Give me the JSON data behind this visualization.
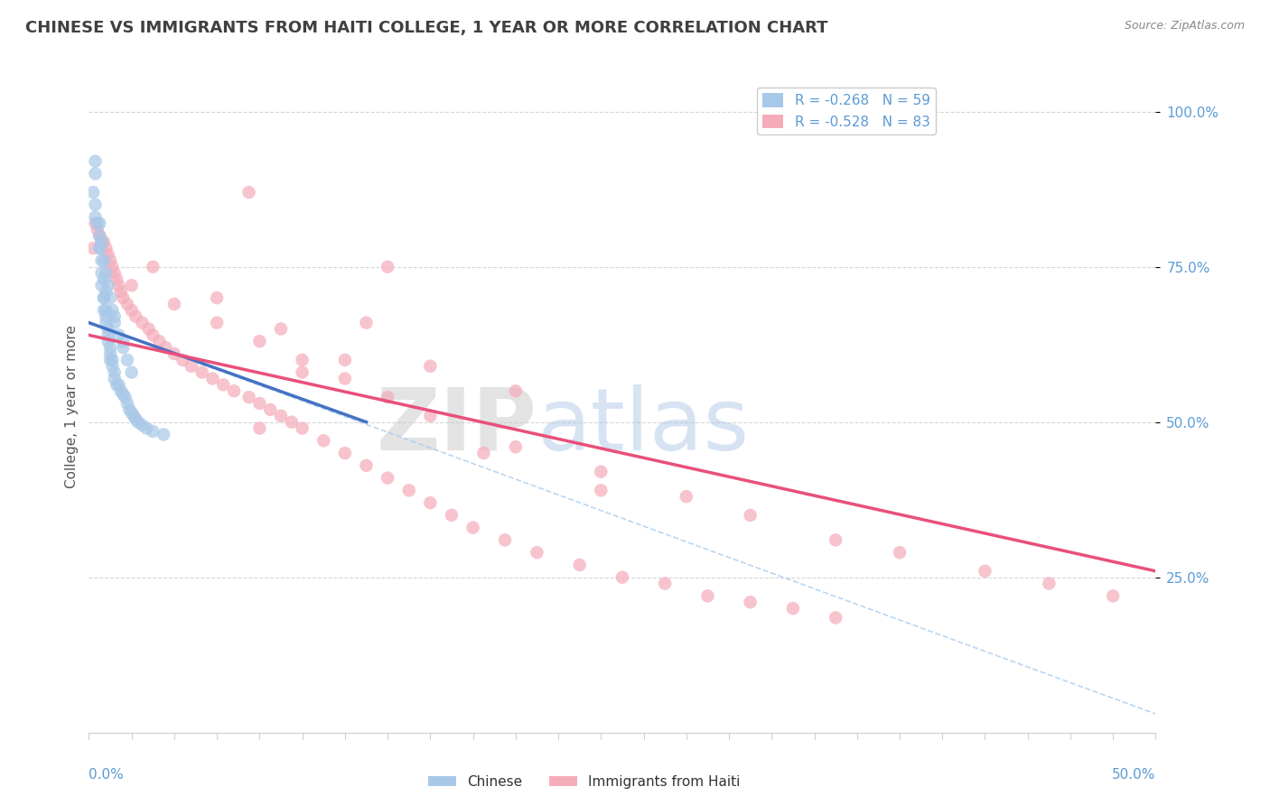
{
  "title": "CHINESE VS IMMIGRANTS FROM HAITI COLLEGE, 1 YEAR OR MORE CORRELATION CHART",
  "source": "Source: ZipAtlas.com",
  "ylabel": "College, 1 year or more",
  "legend_labels": [
    "Chinese",
    "Immigrants from Haiti"
  ],
  "r_chinese": -0.268,
  "n_chinese": 59,
  "r_haiti": -0.528,
  "n_haiti": 83,
  "color_chinese": "#A8C8E8",
  "color_haiti": "#F4ACBA",
  "color_chinese_line": "#4472C4",
  "color_haiti_line": "#E8507A",
  "color_dashed": "#AACCEE",
  "watermark_zip": "ZIP",
  "watermark_atlas": "atlas",
  "xlim": [
    0.0,
    0.5
  ],
  "ylim": [
    0.0,
    1.05
  ],
  "ytick_vals": [
    0.25,
    0.5,
    0.75,
    1.0
  ],
  "ytick_labels": [
    "25.0%",
    "50.0%",
    "75.0%",
    "100.0%"
  ],
  "background_color": "#FFFFFF",
  "grid_color": "#CCCCCC",
  "title_color": "#404040",
  "axis_label_color": "#5B9BD5",
  "chinese_x": [
    0.002,
    0.003,
    0.003,
    0.004,
    0.005,
    0.005,
    0.006,
    0.006,
    0.006,
    0.007,
    0.007,
    0.007,
    0.008,
    0.008,
    0.008,
    0.009,
    0.009,
    0.009,
    0.01,
    0.01,
    0.01,
    0.011,
    0.011,
    0.012,
    0.012,
    0.013,
    0.014,
    0.015,
    0.016,
    0.017,
    0.018,
    0.019,
    0.02,
    0.021,
    0.022,
    0.023,
    0.025,
    0.027,
    0.03,
    0.035,
    0.005,
    0.006,
    0.007,
    0.008,
    0.009,
    0.01,
    0.011,
    0.012,
    0.014,
    0.016,
    0.018,
    0.02,
    0.003,
    0.003,
    0.005,
    0.007,
    0.008,
    0.012,
    0.016
  ],
  "chinese_y": [
    0.87,
    0.85,
    0.83,
    0.82,
    0.8,
    0.78,
    0.76,
    0.74,
    0.72,
    0.7,
    0.7,
    0.68,
    0.68,
    0.67,
    0.66,
    0.65,
    0.64,
    0.63,
    0.62,
    0.61,
    0.6,
    0.6,
    0.59,
    0.58,
    0.57,
    0.56,
    0.56,
    0.55,
    0.545,
    0.54,
    0.53,
    0.52,
    0.515,
    0.51,
    0.505,
    0.5,
    0.495,
    0.49,
    0.485,
    0.48,
    0.82,
    0.79,
    0.76,
    0.74,
    0.72,
    0.7,
    0.68,
    0.66,
    0.64,
    0.62,
    0.6,
    0.58,
    0.92,
    0.9,
    0.78,
    0.73,
    0.71,
    0.67,
    0.63
  ],
  "haiti_x": [
    0.002,
    0.003,
    0.004,
    0.005,
    0.006,
    0.007,
    0.008,
    0.009,
    0.01,
    0.011,
    0.012,
    0.013,
    0.014,
    0.015,
    0.016,
    0.018,
    0.02,
    0.022,
    0.025,
    0.028,
    0.03,
    0.033,
    0.036,
    0.04,
    0.044,
    0.048,
    0.053,
    0.058,
    0.063,
    0.068,
    0.075,
    0.08,
    0.085,
    0.09,
    0.095,
    0.1,
    0.11,
    0.12,
    0.13,
    0.14,
    0.15,
    0.16,
    0.17,
    0.18,
    0.195,
    0.21,
    0.23,
    0.25,
    0.27,
    0.29,
    0.31,
    0.33,
    0.35,
    0.02,
    0.04,
    0.06,
    0.08,
    0.1,
    0.12,
    0.14,
    0.16,
    0.2,
    0.24,
    0.28,
    0.31,
    0.35,
    0.03,
    0.06,
    0.09,
    0.12,
    0.075,
    0.14,
    0.08,
    0.1,
    0.13,
    0.16,
    0.38,
    0.42,
    0.45,
    0.48,
    0.185,
    0.24,
    0.2
  ],
  "haiti_y": [
    0.78,
    0.82,
    0.81,
    0.8,
    0.79,
    0.79,
    0.78,
    0.77,
    0.76,
    0.75,
    0.74,
    0.73,
    0.72,
    0.71,
    0.7,
    0.69,
    0.68,
    0.67,
    0.66,
    0.65,
    0.64,
    0.63,
    0.62,
    0.61,
    0.6,
    0.59,
    0.58,
    0.57,
    0.56,
    0.55,
    0.54,
    0.53,
    0.52,
    0.51,
    0.5,
    0.49,
    0.47,
    0.45,
    0.43,
    0.41,
    0.39,
    0.37,
    0.35,
    0.33,
    0.31,
    0.29,
    0.27,
    0.25,
    0.24,
    0.22,
    0.21,
    0.2,
    0.185,
    0.72,
    0.69,
    0.66,
    0.63,
    0.6,
    0.57,
    0.54,
    0.51,
    0.46,
    0.42,
    0.38,
    0.35,
    0.31,
    0.75,
    0.7,
    0.65,
    0.6,
    0.87,
    0.75,
    0.49,
    0.58,
    0.66,
    0.59,
    0.29,
    0.26,
    0.24,
    0.22,
    0.45,
    0.39,
    0.55
  ],
  "chinese_trend_x": [
    0.0,
    0.13
  ],
  "chinese_trend_y": [
    0.66,
    0.5
  ],
  "haiti_trend_x": [
    0.0,
    0.5
  ],
  "haiti_trend_y": [
    0.64,
    0.26
  ],
  "dashed_trend_x": [
    0.0,
    0.5
  ],
  "dashed_trend_y": [
    0.66,
    0.03
  ]
}
